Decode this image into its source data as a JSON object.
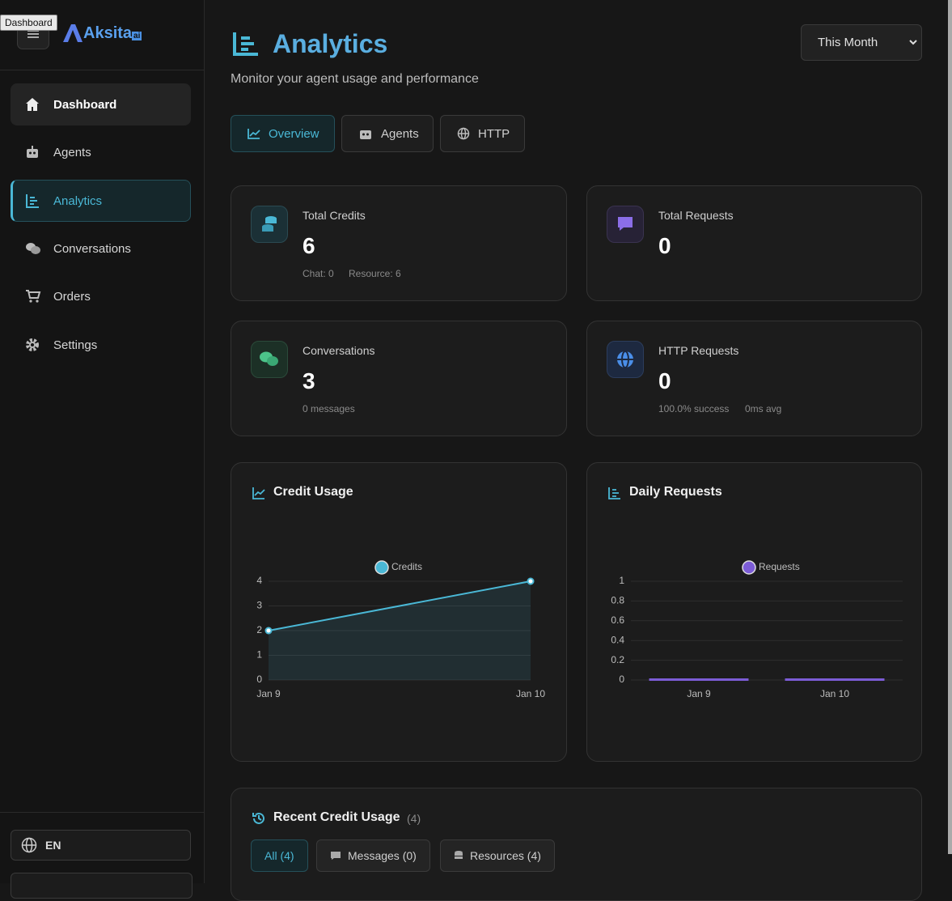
{
  "tooltip": "Dashboard",
  "sidebar": {
    "logo": "Aksita",
    "logo_suffix": "ai",
    "nav": [
      "Dashboard",
      "Agents",
      "Analytics",
      "Conversations",
      "Orders",
      "Settings"
    ],
    "language": "EN"
  },
  "header": {
    "title": "Analytics",
    "subtitle": "Monitor your agent usage and performance",
    "period": "This Month"
  },
  "tabs": [
    "Overview",
    "Agents",
    "HTTP"
  ],
  "stats": [
    {
      "label": "Total Credits",
      "value": 6,
      "details": [
        "Chat: 0",
        "Resource: 6"
      ]
    },
    {
      "label": "Total Requests",
      "value": 0
    },
    {
      "label": "Conversations",
      "value": 3,
      "details": [
        "0 messages"
      ]
    },
    {
      "label": "HTTP Requests",
      "value": 0,
      "details": [
        "100.0% success",
        "0ms avg"
      ]
    }
  ],
  "chart_data": [
    {
      "type": "line",
      "title": "Credit Usage",
      "categories": [
        "Jan 9",
        "Jan 10"
      ],
      "series": [
        {
          "name": "Credits",
          "color": "#4ab8d6",
          "values": [
            2,
            4
          ]
        }
      ],
      "ylim": [
        0,
        4
      ],
      "yticks": [
        0,
        1,
        2,
        3,
        4
      ],
      "grid": true,
      "legend": "top"
    },
    {
      "type": "bar",
      "title": "Daily Requests",
      "categories": [
        "Jan 9",
        "Jan 10"
      ],
      "series": [
        {
          "name": "Requests",
          "color": "#7c5cd6",
          "values": [
            0,
            0
          ]
        }
      ],
      "ylim": [
        0,
        1
      ],
      "yticks": [
        0,
        0.2,
        0.4,
        0.6,
        0.8,
        1
      ],
      "grid": true,
      "legend": "top"
    }
  ],
  "recent": {
    "title": "Recent Credit Usage",
    "count": "(4)",
    "filters": [
      "All (4)",
      "Messages (0)",
      "Resources (4)"
    ]
  }
}
